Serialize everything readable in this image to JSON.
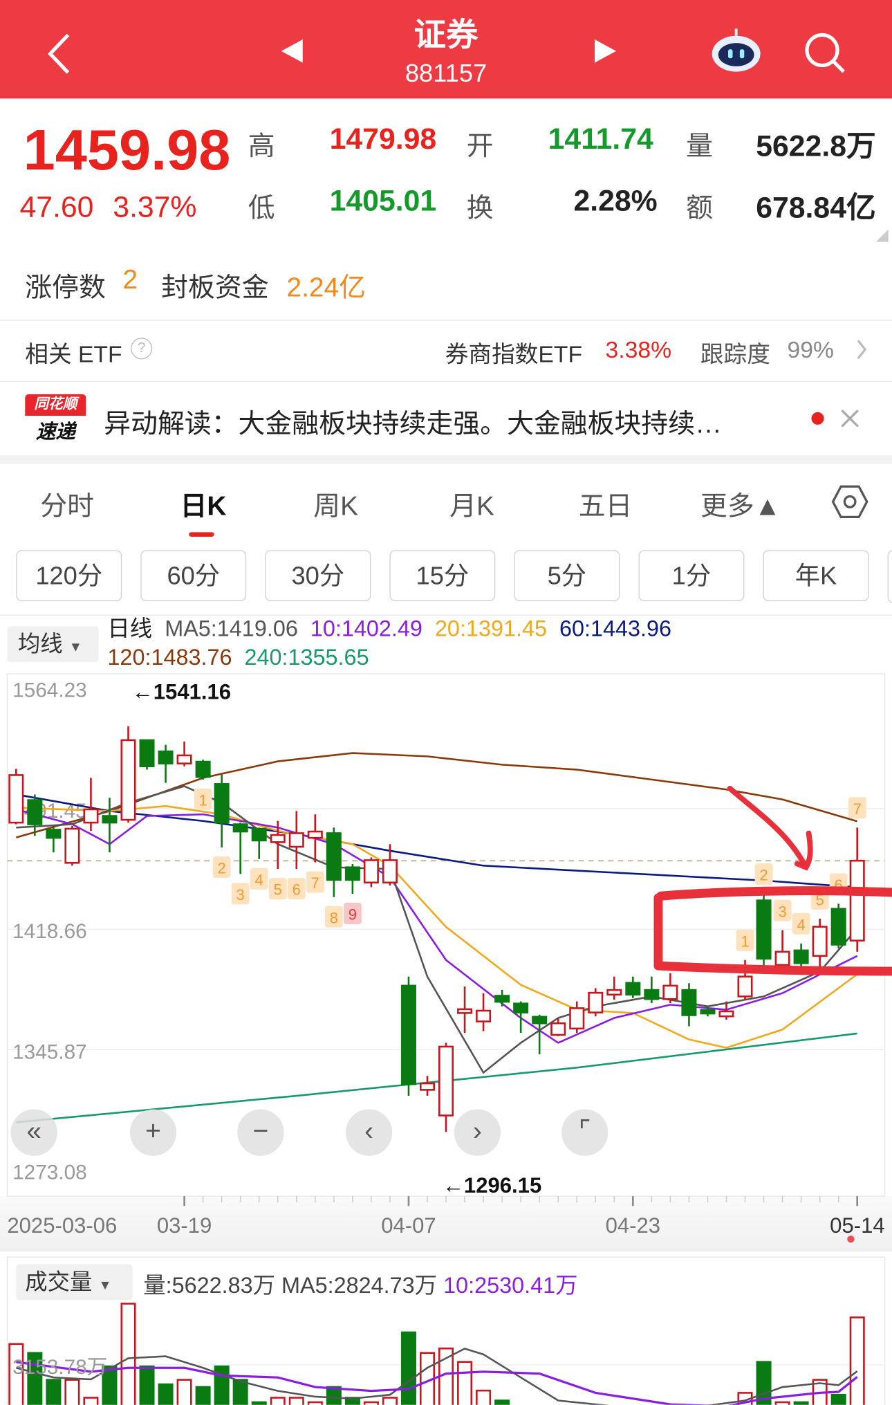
{
  "header": {
    "title": "证券",
    "code": "881157",
    "back_icon": "chevron-left-icon",
    "prev_icon": "triangle-left-icon",
    "next_icon": "triangle-right-icon",
    "robot_icon": "robot-assistant-icon",
    "search_icon": "search-icon",
    "bg_color": "#ee3a42"
  },
  "quote": {
    "price": "1459.98",
    "change": "47.60",
    "change_pct": "3.37%",
    "high_label": "高",
    "high": "1479.98",
    "open_label": "开",
    "open": "1411.74",
    "volume_label": "量",
    "volume": "5622.8万",
    "low_label": "低",
    "low": "1405.01",
    "turnover_label": "换",
    "turnover": "2.28%",
    "amount_label": "额",
    "amount": "678.84亿"
  },
  "limit": {
    "count_label": "涨停数",
    "count": "2",
    "fund_label": "封板资金",
    "fund": "2.24亿"
  },
  "etf": {
    "label": "相关 ETF",
    "help_icon": "question-circle-icon",
    "name": "券商指数ETF",
    "pct": "3.38%",
    "track_label": "跟踪度",
    "track": "99%"
  },
  "news": {
    "logo_top": "同花顺",
    "logo_bottom": "速递",
    "text": "异动解读：大金融板块持续走强。大金融板块持续…",
    "close_icon": "close-icon"
  },
  "tabs": [
    {
      "label": "分时"
    },
    {
      "label": "日K",
      "active": true
    },
    {
      "label": "周K"
    },
    {
      "label": "月K"
    },
    {
      "label": "五日"
    },
    {
      "label": "更多▲"
    }
  ],
  "periods": [
    "120分",
    "60分",
    "30分",
    "15分",
    "5分",
    "1分",
    "年K"
  ],
  "ma_legend": {
    "selector": "均线",
    "title": "日线",
    "ma5": "MA5:1419.06",
    "ma10": "10:1402.49",
    "ma20": "20:1391.45",
    "ma60": "60:1443.96",
    "ma120": "120:1483.76",
    "ma240": "240:1355.65"
  },
  "chart_data": {
    "type": "candlestick",
    "y_ticks": [
      "1564.23",
      "1491.45",
      "1418.66",
      "1345.87",
      "1273.08"
    ],
    "ylim": [
      1273.08,
      1564.23
    ],
    "x_ticks": [
      {
        "index": 0,
        "label": "2025-03-06"
      },
      {
        "index": 9,
        "label": "03-19"
      },
      {
        "index": 21,
        "label": "04-07"
      },
      {
        "index": 33,
        "label": "04-23"
      },
      {
        "index": 45,
        "label": "05-14"
      }
    ],
    "max_label": "←1541.16",
    "min_label": "←1296.15",
    "current_price": 1459.98,
    "colors": {
      "up": "#c8161d",
      "down": "#0a7a12",
      "ma5": "#555555",
      "ma10": "#8a1ee0",
      "ma20": "#f0a81c",
      "ma60": "#0a1a80",
      "ma120": "#8a3a0a",
      "ma240": "#169a6a"
    },
    "candles": [
      [
        1483,
        1515.5,
        1482,
        1511.7
      ],
      [
        1496.6,
        1500,
        1475,
        1482
      ],
      [
        1478.7,
        1480,
        1465,
        1473.8
      ],
      [
        1458.7,
        1481,
        1457,
        1479.3
      ],
      [
        1483,
        1510,
        1478,
        1491
      ],
      [
        1487,
        1498,
        1465,
        1483
      ],
      [
        1484.7,
        1541.16,
        1483,
        1532.8
      ],
      [
        1532.8,
        1533,
        1515,
        1517
      ],
      [
        1526,
        1530,
        1507,
        1518.7
      ],
      [
        1518.7,
        1532,
        1517,
        1523.6
      ],
      [
        1519.8,
        1521,
        1509,
        1510.6
      ],
      [
        1506.3,
        1512,
        1468,
        1483
      ],
      [
        1482,
        1483,
        1452,
        1477.6
      ],
      [
        1479.3,
        1480,
        1461,
        1472.2
      ],
      [
        1471.2,
        1484,
        1455,
        1475.5
      ],
      [
        1468.4,
        1490,
        1455,
        1476.6
      ],
      [
        1473.8,
        1488,
        1459,
        1477.6
      ],
      [
        1476.6,
        1480,
        1438,
        1448.4
      ],
      [
        1456,
        1458,
        1440,
        1448.4
      ],
      [
        1446.8,
        1462,
        1444,
        1460.3
      ],
      [
        1446.8,
        1470,
        1445,
        1460.3
      ],
      [
        1384.5,
        1390,
        1318,
        1325
      ],
      [
        1321.6,
        1330,
        1318,
        1325.5
      ],
      [
        1306.1,
        1350,
        1296.15,
        1347.7
      ],
      [
        1368,
        1384,
        1356,
        1370.3
      ],
      [
        1362.9,
        1380,
        1357,
        1369.4
      ],
      [
        1378.4,
        1382,
        1372,
        1374.8
      ],
      [
        1373.7,
        1375,
        1356,
        1368.3
      ],
      [
        1365.7,
        1367,
        1343,
        1361.8
      ],
      [
        1354.8,
        1365,
        1354,
        1361.8
      ],
      [
        1358.6,
        1375,
        1356,
        1370.9
      ],
      [
        1368.3,
        1383,
        1366,
        1380.2
      ],
      [
        1379.1,
        1390,
        1376,
        1381.9
      ],
      [
        1386.2,
        1390,
        1377,
        1379.1
      ],
      [
        1381.9,
        1390,
        1374,
        1376.4
      ],
      [
        1376.4,
        1392,
        1374,
        1384.5
      ],
      [
        1381.9,
        1386,
        1360,
        1366.7
      ],
      [
        1369.8,
        1372,
        1366,
        1367.7
      ],
      [
        1366,
        1375,
        1364,
        1369
      ],
      [
        1378,
        1400,
        1376,
        1390
      ],
      [
        1436,
        1440,
        1395,
        1400.8
      ],
      [
        1397,
        1418,
        1395,
        1405
      ],
      [
        1405.8,
        1410,
        1393,
        1398.1
      ],
      [
        1402.5,
        1425,
        1396,
        1420.1
      ],
      [
        1430.9,
        1434,
        1407,
        1409.3
      ],
      [
        1411.74,
        1479.98,
        1405.01,
        1459.98
      ]
    ],
    "ma": {
      "ma5": [
        [
          0,
          1480
        ],
        [
          3,
          1482
        ],
        [
          6,
          1495
        ],
        [
          9,
          1505
        ],
        [
          11,
          1495
        ],
        [
          14,
          1470
        ],
        [
          17,
          1456
        ],
        [
          20,
          1455
        ],
        [
          22,
          1390
        ],
        [
          25,
          1332
        ],
        [
          27,
          1350
        ],
        [
          29,
          1365
        ],
        [
          31,
          1372
        ],
        [
          34,
          1378
        ],
        [
          37,
          1372
        ],
        [
          40,
          1378
        ],
        [
          43,
          1393
        ],
        [
          45,
          1419.06
        ]
      ],
      "ma10": [
        [
          0,
          1491
        ],
        [
          3,
          1482
        ],
        [
          5,
          1470
        ],
        [
          7,
          1487
        ],
        [
          10,
          1488
        ],
        [
          14,
          1480
        ],
        [
          17,
          1470
        ],
        [
          20,
          1450
        ],
        [
          23,
          1400
        ],
        [
          27,
          1365
        ],
        [
          29,
          1350
        ],
        [
          32,
          1365
        ],
        [
          35,
          1373
        ],
        [
          38,
          1370
        ],
        [
          41,
          1380
        ],
        [
          45,
          1402.49
        ]
      ],
      "ma20": [
        [
          0,
          1492
        ],
        [
          5,
          1490
        ],
        [
          8,
          1493
        ],
        [
          11,
          1488
        ],
        [
          14,
          1478
        ],
        [
          18,
          1470
        ],
        [
          20,
          1457
        ],
        [
          23,
          1420
        ],
        [
          27,
          1385
        ],
        [
          30,
          1370
        ],
        [
          33,
          1368
        ],
        [
          36,
          1352
        ],
        [
          38,
          1347
        ],
        [
          41,
          1358
        ],
        [
          45,
          1391.45
        ]
      ],
      "ma60": [
        [
          0,
          1500
        ],
        [
          5,
          1490
        ],
        [
          10,
          1484
        ],
        [
          15,
          1476
        ],
        [
          20,
          1466
        ],
        [
          25,
          1457
        ],
        [
          30,
          1454
        ],
        [
          35,
          1451
        ],
        [
          40,
          1448
        ],
        [
          45,
          1443.96
        ]
      ],
      "ma120": [
        [
          0,
          1474
        ],
        [
          5,
          1490
        ],
        [
          10,
          1510
        ],
        [
          14,
          1520
        ],
        [
          18,
          1525
        ],
        [
          22,
          1523
        ],
        [
          26,
          1518
        ],
        [
          30,
          1515
        ],
        [
          34,
          1509
        ],
        [
          38,
          1503
        ],
        [
          41,
          1497
        ],
        [
          45,
          1483.76
        ]
      ],
      "ma240": [
        [
          0,
          1302
        ],
        [
          15,
          1318
        ],
        [
          30,
          1335
        ],
        [
          45,
          1355.65
        ]
      ]
    },
    "td_marks": [
      {
        "index": 10,
        "n": "1"
      },
      {
        "index": 11,
        "n": "2"
      },
      {
        "index": 12,
        "n": "3"
      },
      {
        "index": 13,
        "n": "4"
      },
      {
        "index": 14,
        "n": "5"
      },
      {
        "index": 15,
        "n": "6"
      },
      {
        "index": 16,
        "n": "7"
      },
      {
        "index": 17,
        "n": "8"
      },
      {
        "index": 18,
        "n": "9"
      },
      {
        "index": 39,
        "n": "1"
      },
      {
        "index": 40,
        "n": "2"
      },
      {
        "index": 41,
        "n": "3"
      },
      {
        "index": 42,
        "n": "4"
      },
      {
        "index": 43,
        "n": "5"
      },
      {
        "index": 44,
        "n": "6"
      },
      {
        "index": 45,
        "n": "7"
      }
    ],
    "volume": {
      "selector": "成交量",
      "vol": "量:5622.83万",
      "ma5": "MA5:2824.73万",
      "ma10": "10:2530.41万",
      "y_tick": "3153.78万",
      "values": [
        4240,
        3775,
        2377,
        2377,
        1445,
        3076,
        6338,
        3076,
        2144,
        2377,
        2004,
        3076,
        2377,
        1212,
        1445,
        1445,
        1212,
        2004,
        1445,
        1212,
        1445,
        4846,
        3775,
        4008,
        3309,
        1817,
        1300,
        900,
        800,
        700,
        800,
        900,
        850,
        700,
        800,
        900,
        800,
        700,
        900,
        1700,
        3309,
        1212,
        1212,
        2377,
        1600,
        5622.83
      ],
      "ma5_line": [
        [
          0,
          3000
        ],
        [
          2,
          2500
        ],
        [
          4,
          2400
        ],
        [
          6,
          3500
        ],
        [
          8,
          3600
        ],
        [
          10,
          3000
        ],
        [
          12,
          2300
        ],
        [
          14,
          1800
        ],
        [
          16,
          1500
        ],
        [
          18,
          1400
        ],
        [
          20,
          1600
        ],
        [
          22,
          3000
        ],
        [
          24,
          4000
        ],
        [
          25,
          3700
        ],
        [
          27,
          2500
        ],
        [
          29,
          1300
        ],
        [
          32,
          1000
        ],
        [
          36,
          900
        ],
        [
          39,
          1300
        ],
        [
          41,
          2000
        ],
        [
          43,
          2200
        ],
        [
          44,
          2100
        ],
        [
          45,
          2824.73
        ]
      ],
      "ma10_line": [
        [
          0,
          3300
        ],
        [
          4,
          2800
        ],
        [
          6,
          3000
        ],
        [
          9,
          3000
        ],
        [
          11,
          2600
        ],
        [
          14,
          2500
        ],
        [
          16,
          2000
        ],
        [
          19,
          1800
        ],
        [
          21,
          1900
        ],
        [
          23,
          2700
        ],
        [
          25,
          2800
        ],
        [
          28,
          2700
        ],
        [
          31,
          1700
        ],
        [
          35,
          1100
        ],
        [
          38,
          1000
        ],
        [
          40,
          1400
        ],
        [
          43,
          1700
        ],
        [
          44,
          1750
        ],
        [
          45,
          2530.41
        ]
      ]
    }
  }
}
